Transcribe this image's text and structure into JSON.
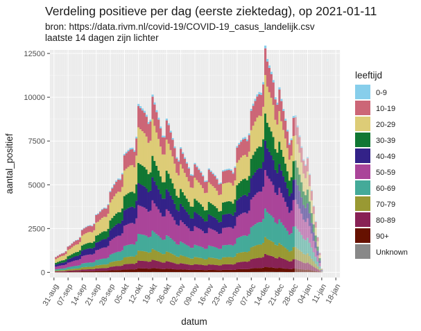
{
  "chart_data": {
    "type": "area",
    "stacked": true,
    "title": "Verdeling positieve per dag (eerste ziektedag), op 2021-01-11",
    "subtitle_lines": [
      "bron: https://data.rivm.nl/covid-19/COVID-19_casus_landelijk.csv",
      "laatste 14 dagen zijn lichter"
    ],
    "xlabel": "datum",
    "ylabel": "aantal_positief",
    "ylim": [
      -300,
      12700
    ],
    "yticks": [
      0,
      2500,
      5000,
      7500,
      10000,
      12500
    ],
    "ytick_labels": [
      "0",
      "2500",
      "5000",
      "7500",
      "10000",
      "12500"
    ],
    "x_start": "2020-08-29",
    "x_end": "2021-01-20",
    "x_data_start": "2020-09-01",
    "x_data_end": "2021-01-11",
    "x_light_from": "2020-12-29",
    "xticks": [
      "2020-08-31",
      "2020-09-07",
      "2020-09-14",
      "2020-09-21",
      "2020-09-28",
      "2020-10-05",
      "2020-10-12",
      "2020-10-19",
      "2020-10-26",
      "2020-11-02",
      "2020-11-09",
      "2020-11-16",
      "2020-11-23",
      "2020-11-30",
      "2020-12-07",
      "2020-12-14",
      "2020-12-21",
      "2020-12-28",
      "2021-01-04",
      "2021-01-11",
      "2021-01-18"
    ],
    "xtick_labels": [
      "31-aug",
      "07-sep",
      "14-sep",
      "21-sep",
      "28-sep",
      "05-okt",
      "12-okt",
      "19-okt",
      "26-okt",
      "02-nov",
      "09-nov",
      "16-nov",
      "23-nov",
      "30-nov",
      "07-dec",
      "14-dec",
      "21-dec",
      "28-dec",
      "04-jan",
      "11-jan",
      "18-jan"
    ],
    "total_profile": [
      [
        "2020-09-01",
        850
      ],
      [
        "2020-09-08",
        1500
      ],
      [
        "2020-09-15",
        2450
      ],
      [
        "2020-09-22",
        3250
      ],
      [
        "2020-09-28",
        4400
      ],
      [
        "2020-10-05",
        6400
      ],
      [
        "2020-10-10",
        7600
      ],
      [
        "2020-10-12",
        9100
      ],
      [
        "2020-10-18",
        9400
      ],
      [
        "2020-10-19",
        9600
      ],
      [
        "2020-10-23",
        8600
      ],
      [
        "2020-10-27",
        8200
      ],
      [
        "2020-11-01",
        6900
      ],
      [
        "2020-11-05",
        6300
      ],
      [
        "2020-11-09",
        5900
      ],
      [
        "2020-11-16",
        5600
      ],
      [
        "2020-11-23",
        5500
      ],
      [
        "2020-11-28",
        6200
      ],
      [
        "2020-12-02",
        7400
      ],
      [
        "2020-12-07",
        8800
      ],
      [
        "2020-12-11",
        10600
      ],
      [
        "2020-12-14",
        12200
      ],
      [
        "2020-12-15",
        11700
      ],
      [
        "2020-12-18",
        11300
      ],
      [
        "2020-12-22",
        9500
      ],
      [
        "2020-12-26",
        8000
      ],
      [
        "2020-12-29",
        8600
      ],
      [
        "2021-01-01",
        7400
      ],
      [
        "2021-01-04",
        6200
      ],
      [
        "2021-01-07",
        3800
      ],
      [
        "2021-01-09",
        2200
      ],
      [
        "2021-01-11",
        200
      ]
    ],
    "legend_title": "leeftijd",
    "legend_position": "right",
    "grid": true,
    "series": [
      {
        "name": "0-9",
        "color": "#87ceeb",
        "share": 0.012
      },
      {
        "name": "10-19",
        "color": "#cc6677",
        "share": 0.12
      },
      {
        "name": "20-29",
        "color": "#ddcc77",
        "share": 0.19
      },
      {
        "name": "30-39",
        "color": "#117733",
        "share": 0.12
      },
      {
        "name": "40-49",
        "color": "#332288",
        "share": 0.13
      },
      {
        "name": "50-59",
        "color": "#aa4499",
        "share": 0.17
      },
      {
        "name": "60-69",
        "color": "#44aa99",
        "share": 0.11
      },
      {
        "name": "70-79",
        "color": "#999933",
        "share": 0.065
      },
      {
        "name": "80-89",
        "color": "#882255",
        "share": 0.05
      },
      {
        "name": "90+",
        "color": "#661100",
        "share": 0.022
      },
      {
        "name": "Unknown",
        "color": "#888888",
        "share": 0.002
      }
    ]
  }
}
